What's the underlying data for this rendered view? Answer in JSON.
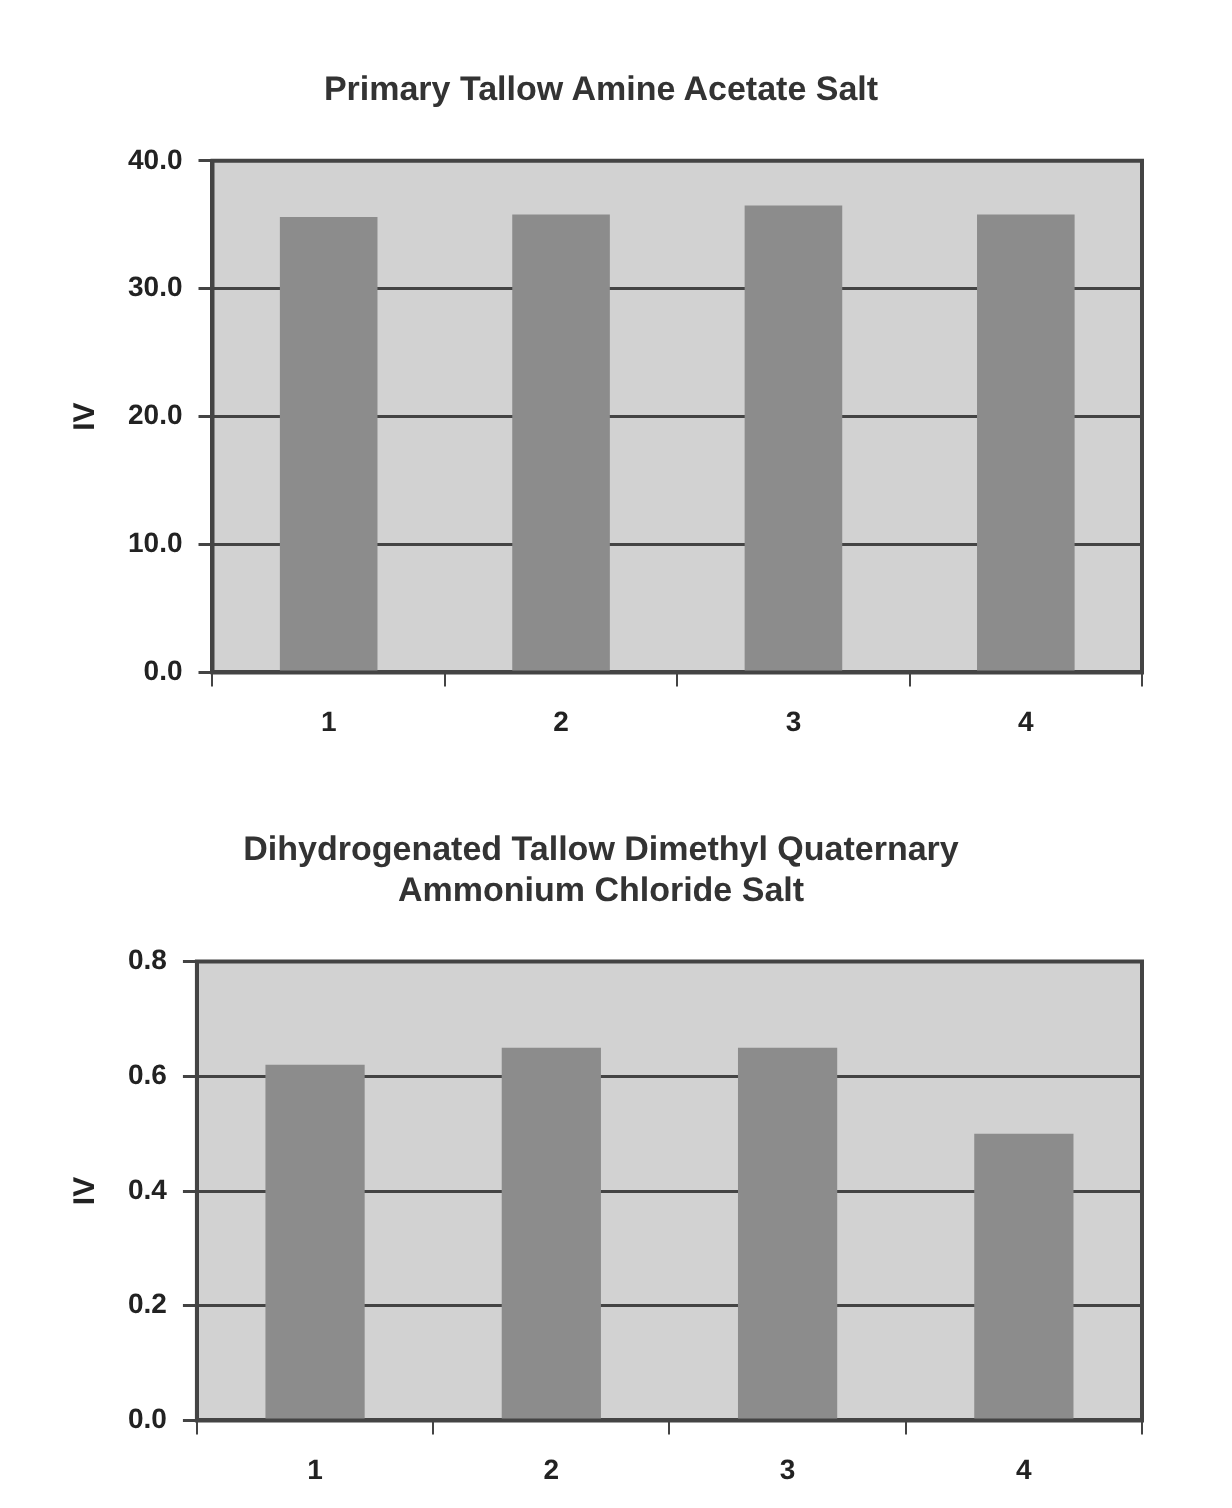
{
  "chart_data": [
    {
      "type": "bar",
      "title": "Primary Tallow Amine Acetate Salt",
      "ylabel": "IV",
      "categories": [
        "1",
        "2",
        "3",
        "4"
      ],
      "values": [
        35.6,
        35.8,
        36.5,
        35.8
      ],
      "color": "#8c8c8c",
      "ylim": [
        0,
        40
      ],
      "yticks": [
        {
          "value": 0,
          "label": "0.0"
        },
        {
          "value": 10,
          "label": "10.0"
        },
        {
          "value": 20,
          "label": "20.0"
        },
        {
          "value": 30,
          "label": "30.0"
        },
        {
          "value": 40,
          "label": "40.0"
        }
      ],
      "grid": "y",
      "legend": false
    },
    {
      "type": "bar",
      "title": "Dihydrogenated Tallow Dimethyl Quaternary\nAmmonium Chloride Salt",
      "ylabel": "IV",
      "categories": [
        "1",
        "2",
        "3",
        "4"
      ],
      "values": [
        0.62,
        0.65,
        0.65,
        0.5
      ],
      "color": "#8c8c8c",
      "ylim": [
        0,
        0.8
      ],
      "yticks": [
        {
          "value": 0,
          "label": "0.0"
        },
        {
          "value": 0.2,
          "label": "0.2"
        },
        {
          "value": 0.4,
          "label": "0.4"
        },
        {
          "value": 0.6,
          "label": "0.6"
        },
        {
          "value": 0.8,
          "label": "0.8"
        }
      ],
      "grid": "y",
      "legend": false
    }
  ]
}
